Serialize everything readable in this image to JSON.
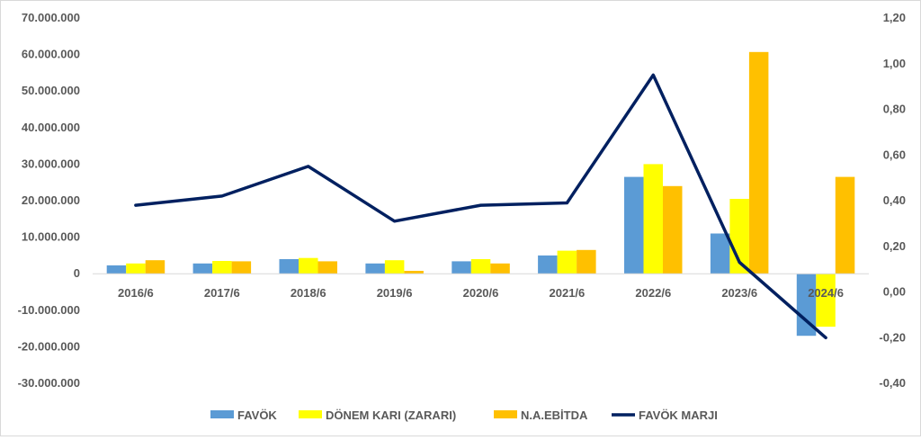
{
  "chart_data": {
    "type": "bar",
    "categories": [
      "2016/6",
      "2017/6",
      "2018/6",
      "2019/6",
      "2020/6",
      "2021/6",
      "2022/6",
      "2023/6",
      "2024/6"
    ],
    "series": [
      {
        "name": "FAVÖK",
        "type": "bar",
        "axis": "left",
        "color": "#5b9bd5",
        "values": [
          2300000,
          2800000,
          4000000,
          2800000,
          3400000,
          5000000,
          26500000,
          11000000,
          -17000000
        ]
      },
      {
        "name": "DÖNEM KARI (ZARARI)",
        "type": "bar",
        "axis": "left",
        "color": "#ffff00",
        "values": [
          2800000,
          3500000,
          4300000,
          3700000,
          4000000,
          6300000,
          30000000,
          20500000,
          -14500000
        ]
      },
      {
        "name": "N.A.EBİTDA",
        "type": "bar",
        "axis": "left",
        "color": "#ffc000",
        "values": [
          3700000,
          3400000,
          3400000,
          800000,
          2800000,
          6500000,
          24000000,
          60700000,
          26500000
        ]
      },
      {
        "name": "FAVÖK MARJI",
        "type": "line",
        "axis": "right",
        "color": "#002060",
        "values": [
          0.38,
          0.42,
          0.55,
          0.31,
          0.38,
          0.39,
          0.95,
          0.13,
          -0.2
        ]
      }
    ],
    "y_left": {
      "ylim": [
        -30000000,
        70000000
      ],
      "ticks": [
        70000000,
        60000000,
        50000000,
        40000000,
        30000000,
        20000000,
        10000000,
        0,
        -10000000,
        -20000000,
        -30000000
      ],
      "tick_labels": [
        "70.000.000",
        "60.000.000",
        "50.000.000",
        "40.000.000",
        "30.000.000",
        "20.000.000",
        "10.000.000",
        "0",
        "-10.000.000",
        "-20.000.000",
        "-30.000.000"
      ]
    },
    "y_right": {
      "ylim": [
        -0.4,
        1.2
      ],
      "ticks": [
        1.2,
        1.0,
        0.8,
        0.6,
        0.4,
        0.2,
        0.0,
        -0.2,
        -0.4
      ],
      "tick_labels": [
        "1,20",
        "1,00",
        "0,80",
        "0,60",
        "0,40",
        "0,20",
        "0,00",
        "-0,20",
        "-0,40"
      ]
    },
    "grid": false,
    "legend_position": "bottom",
    "title": "",
    "xlabel": "",
    "ylabel": ""
  }
}
